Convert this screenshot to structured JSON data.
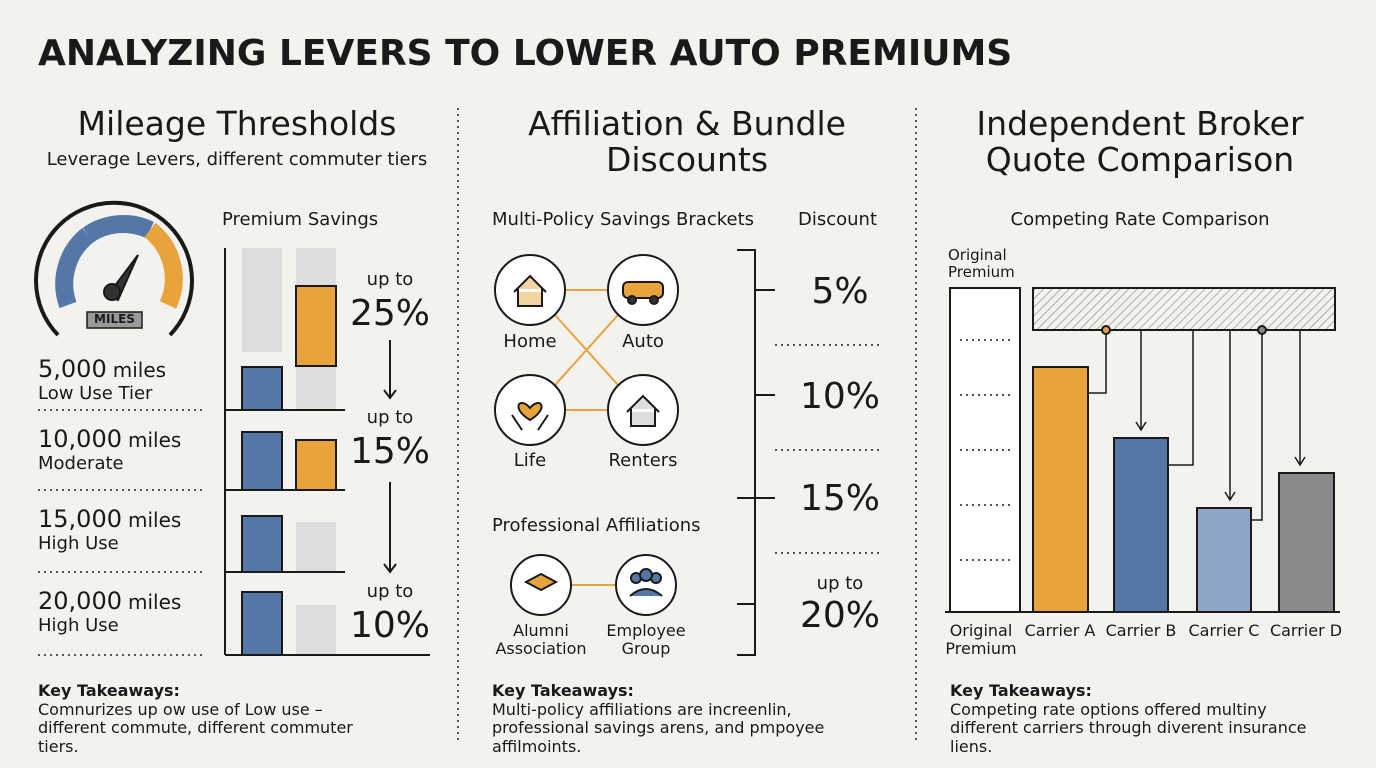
{
  "title": "ANALYZING LEVERS TO LOWER AUTO PREMIUMS",
  "mileage": {
    "heading": "Mileage Thresholds",
    "subtitle": "Leverage Levers, different commuter tiers",
    "chart_title": "Premium Savings",
    "gauge_label": "MILES",
    "tiers": [
      {
        "miles": "5,000",
        "unit": "miles",
        "tier": "Low Use Tier"
      },
      {
        "miles": "10,000",
        "unit": "miles",
        "tier": "Moderate"
      },
      {
        "miles": "15,000",
        "unit": "miles",
        "tier": "High Use"
      },
      {
        "miles": "20,000",
        "unit": "miles",
        "tier": "High Use"
      }
    ],
    "savings": [
      {
        "prefix": "up to",
        "value": "25%"
      },
      {
        "prefix": "up to",
        "value": "15%"
      },
      {
        "prefix": "up to",
        "value": "10%"
      }
    ],
    "takeaways_title": "Key Takeaways:",
    "takeaways": "Comnurizes up ow use of Low use – different commute, different commuter tiers."
  },
  "affiliation": {
    "heading": "Affiliation & Bundle Discounts",
    "brackets_title": "Multi-Policy Savings Brackets",
    "discount_title": "Discount",
    "policies": [
      "Home",
      "Auto",
      "Life",
      "Renters"
    ],
    "discounts": [
      {
        "prefix": null,
        "value": "5%"
      },
      {
        "prefix": null,
        "value": "10%"
      },
      {
        "prefix": null,
        "value": "15%"
      },
      {
        "prefix": "up to",
        "value": "20%"
      }
    ],
    "professional_title": "Professional Affiliations",
    "professional": [
      "Alumni Association",
      "Employee Group"
    ],
    "takeaways_title": "Key Takeaways:",
    "takeaways": "Multi-policy affiliations are increenlin, professional savings arens, and pmpoyee affilmoints."
  },
  "broker": {
    "heading": "Independent Broker Quote Comparison",
    "chart_title": "Competing Rate Comparison",
    "original_label": "Original Premium",
    "categories": [
      "Original Premium",
      "Carrier A",
      "Carrier B",
      "Carrier C",
      "Carrier D"
    ],
    "takeaways_title": "Key Takeaways:",
    "takeaways": "Competing rate options offered multiny different carriers through diverent insurance liens."
  }
}
